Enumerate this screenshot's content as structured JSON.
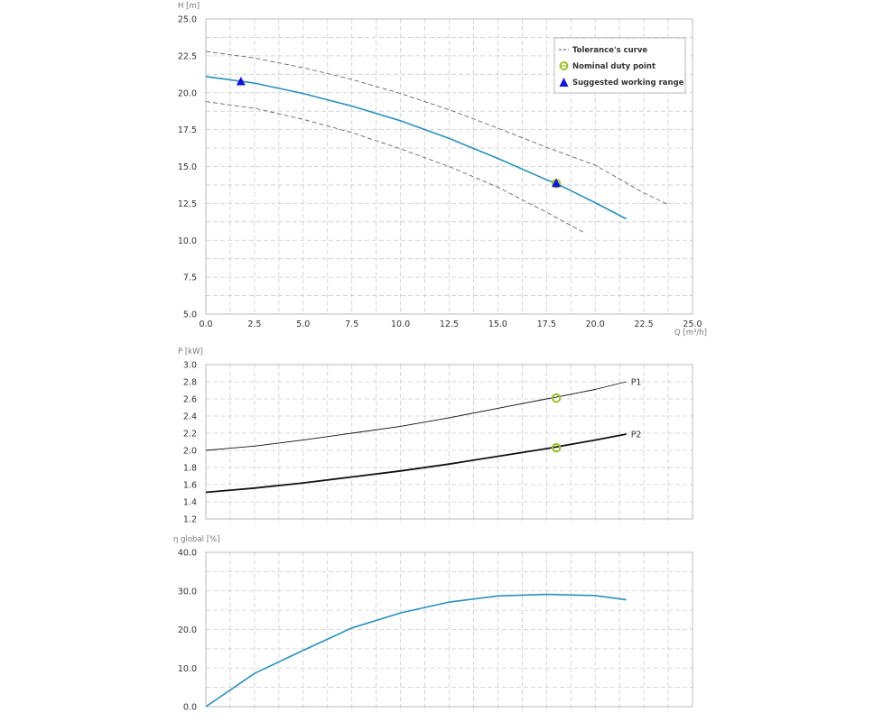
{
  "colors": {
    "pump_curve": "#2a8fbd",
    "tolerance": "#555555",
    "duty_point": "#9bbf2a",
    "working_range": "#1414d8",
    "power": "#111111",
    "grid": "#cccccc"
  },
  "chart_data": [
    {
      "id": "head",
      "type": "line",
      "ylabel": "H [m]",
      "xlabel": "Q [m³/h]",
      "xlim": [
        0,
        25
      ],
      "ylim": [
        5,
        25
      ],
      "xticks": [
        "0.0",
        "2.5",
        "5.0",
        "7.5",
        "10.0",
        "12.5",
        "15.0",
        "17.5",
        "20.0",
        "22.5",
        "25.0"
      ],
      "yticks": [
        "5.0",
        "7.5",
        "10.0",
        "12.5",
        "15.0",
        "17.5",
        "20.0",
        "22.5",
        "25.0"
      ],
      "grid": true,
      "legend": {
        "placement": "top-right",
        "entries": [
          "Tolerance's curve",
          "Nominal duty point",
          "Suggested working range"
        ]
      },
      "series": [
        {
          "name": "H",
          "style": "pump_curve",
          "x": [
            0,
            2.5,
            5,
            7.5,
            10,
            12.5,
            15,
            17.5,
            18,
            20,
            21.6
          ],
          "y": [
            21.1,
            20.65,
            19.95,
            19.1,
            18.1,
            16.9,
            15.55,
            14.1,
            13.85,
            12.55,
            11.45
          ]
        },
        {
          "name": "Tolerance upper",
          "style": "tolerance",
          "x": [
            0,
            2.5,
            5,
            7.5,
            10,
            12.5,
            15,
            17.5,
            20,
            22.5,
            23.8
          ],
          "y": [
            22.8,
            22.35,
            21.7,
            20.9,
            19.95,
            18.85,
            17.6,
            16.3,
            15.1,
            13.2,
            12.4
          ]
        },
        {
          "name": "Tolerance lower",
          "style": "tolerance",
          "x": [
            0,
            2.5,
            5,
            7.5,
            10,
            12.5,
            15,
            17.5,
            19.4
          ],
          "y": [
            19.4,
            18.95,
            18.2,
            17.3,
            16.2,
            15.0,
            13.6,
            11.9,
            10.55
          ]
        }
      ],
      "duty_point": {
        "x": 18,
        "y": 13.85
      },
      "working_range": [
        {
          "x": 1.8,
          "y": 20.75
        },
        {
          "x": 18,
          "y": 13.85
        }
      ]
    },
    {
      "id": "power",
      "type": "line",
      "ylabel": "P [kW]",
      "xlim": [
        0,
        25
      ],
      "ylim": [
        1.2,
        3.0
      ],
      "yticks": [
        "1.2",
        "1.4",
        "1.6",
        "1.8",
        "2.0",
        "2.2",
        "2.4",
        "2.6",
        "2.8",
        "3.0"
      ],
      "grid": true,
      "series": [
        {
          "name": "P1",
          "label": "P1",
          "width": 0.9,
          "x": [
            0,
            2.5,
            5,
            7.5,
            10,
            12.5,
            15,
            17.5,
            18,
            20,
            21.6
          ],
          "y": [
            2.0,
            2.05,
            2.12,
            2.2,
            2.28,
            2.38,
            2.49,
            2.6,
            2.62,
            2.71,
            2.8
          ]
        },
        {
          "name": "P2",
          "label": "P2",
          "width": 1.8,
          "x": [
            0,
            2.5,
            5,
            7.5,
            10,
            12.5,
            15,
            17.5,
            18,
            20,
            21.6
          ],
          "y": [
            1.51,
            1.56,
            1.62,
            1.69,
            1.76,
            1.84,
            1.93,
            2.02,
            2.04,
            2.12,
            2.19
          ]
        }
      ],
      "duty_points": [
        {
          "x": 18,
          "y": 2.61
        },
        {
          "x": 18,
          "y": 2.03
        }
      ]
    },
    {
      "id": "efficiency",
      "type": "line",
      "ylabel": "η global [%]",
      "xlim": [
        0,
        25
      ],
      "ylim": [
        0,
        40
      ],
      "yticks": [
        "0.0",
        "10.0",
        "20.0",
        "30.0",
        "40.0"
      ],
      "grid": true,
      "series": [
        {
          "name": "η global",
          "x": [
            0,
            2.5,
            5,
            7.5,
            10,
            12.5,
            15,
            17.5,
            20,
            21.6
          ],
          "y": [
            0,
            8.6,
            14.6,
            20.4,
            24.3,
            27.1,
            28.7,
            29.1,
            28.8,
            27.7
          ]
        }
      ]
    }
  ]
}
